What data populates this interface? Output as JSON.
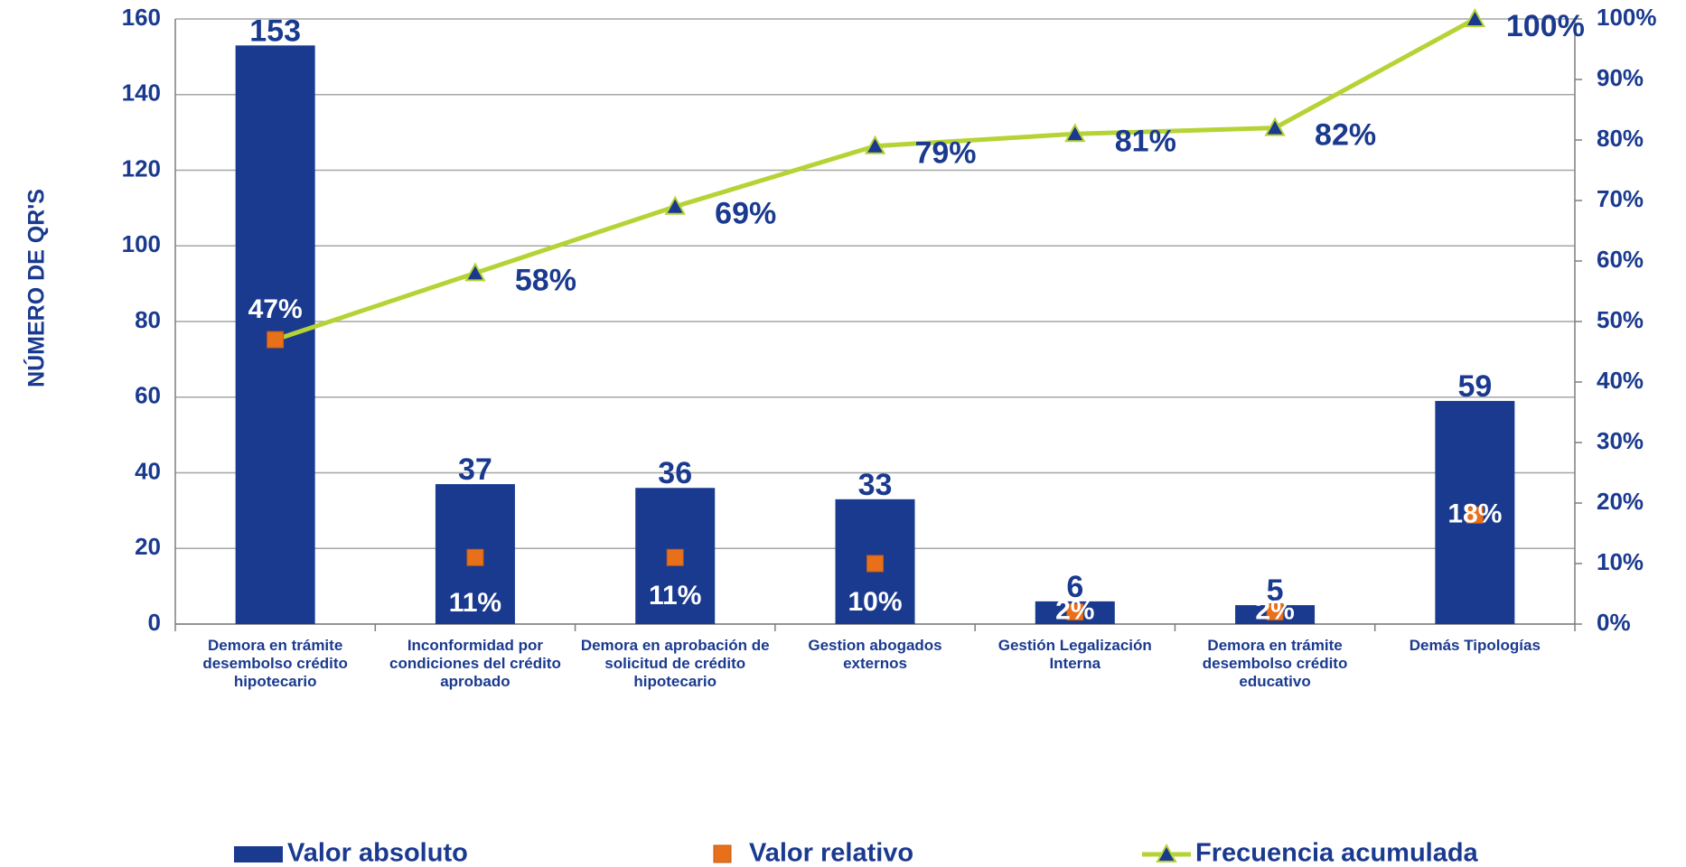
{
  "chart_data": {
    "type": "pareto",
    "y_label": "NÚMERO DE QR'S",
    "categories": [
      "Demora en trámite desembolso crédito hipotecario",
      "Inconformidad por condiciones del crédito aprobado",
      "Demora en aprobación de solicitud de crédito hipotecario",
      "Gestion abogados externos",
      "Gestión Legalización Interna",
      "Demora en trámite desembolso crédito educativo",
      "Demás Tipologías"
    ],
    "series": [
      {
        "name": "Valor absoluto",
        "color": "#1a3a8f",
        "values": [
          153,
          37,
          36,
          33,
          6,
          5,
          59
        ]
      },
      {
        "name": "Valor relativo",
        "color": "#e8701a",
        "axis": "y2",
        "values": [
          47,
          11,
          11,
          10,
          2,
          2,
          18
        ],
        "value_labels": [
          "47%",
          "11%",
          "11%",
          "10%",
          "2%",
          "2%",
          "18%"
        ]
      },
      {
        "name": "Frecuencia acumulada",
        "color": "#b5d334",
        "axis": "y2",
        "values": [
          47,
          58,
          69,
          79,
          81,
          82,
          100
        ],
        "value_labels": [
          "47%",
          "58%",
          "69%",
          "79%",
          "81%",
          "82%",
          "100%"
        ]
      }
    ],
    "ylim": [
      0,
      160
    ],
    "yticks": [
      0,
      20,
      40,
      60,
      80,
      100,
      120,
      140,
      160
    ],
    "y2lim": [
      0,
      100
    ],
    "y2ticks": [
      {
        "value": 0,
        "label": "0%"
      },
      {
        "value": 10,
        "label": "10%"
      },
      {
        "value": 20,
        "label": "20%"
      },
      {
        "value": 30,
        "label": "30%"
      },
      {
        "value": 40,
        "label": "40%"
      },
      {
        "value": 50,
        "label": "50%"
      },
      {
        "value": 60,
        "label": "60%"
      },
      {
        "value": 70,
        "label": "70%"
      },
      {
        "value": 80,
        "label": "80%"
      },
      {
        "value": 90,
        "label": "90%"
      },
      {
        "value": 100,
        "label": "100%"
      }
    ],
    "grid": true
  }
}
